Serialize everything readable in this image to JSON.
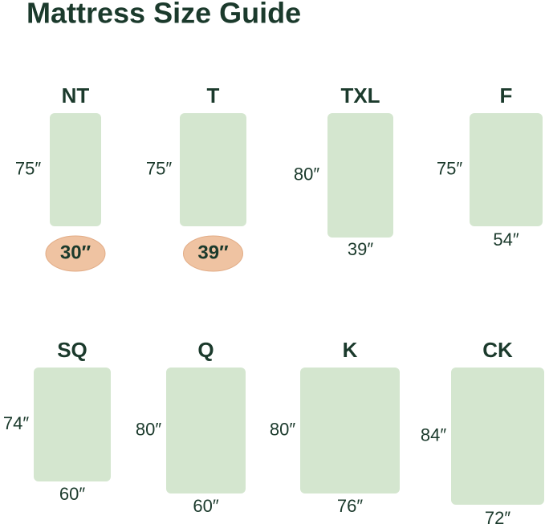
{
  "title": "Mattress Size Guide",
  "mattresses": [
    {
      "label": "NT",
      "length": "75″",
      "width": "30″",
      "highlight": true
    },
    {
      "label": "T",
      "length": "75″",
      "width": "39″",
      "highlight": true
    },
    {
      "label": "TXL",
      "length": "80″",
      "width": "39″",
      "highlight": false
    },
    {
      "label": "F",
      "length": "75″",
      "width": "54″",
      "highlight": false
    },
    {
      "label": "SQ",
      "length": "74″",
      "width": "60″",
      "highlight": false
    },
    {
      "label": "Q",
      "length": "80″",
      "width": "60″",
      "highlight": false
    },
    {
      "label": "K",
      "length": "80″",
      "width": "76″",
      "highlight": false
    },
    {
      "label": "CK",
      "length": "84″",
      "width": "72″",
      "highlight": false
    }
  ]
}
